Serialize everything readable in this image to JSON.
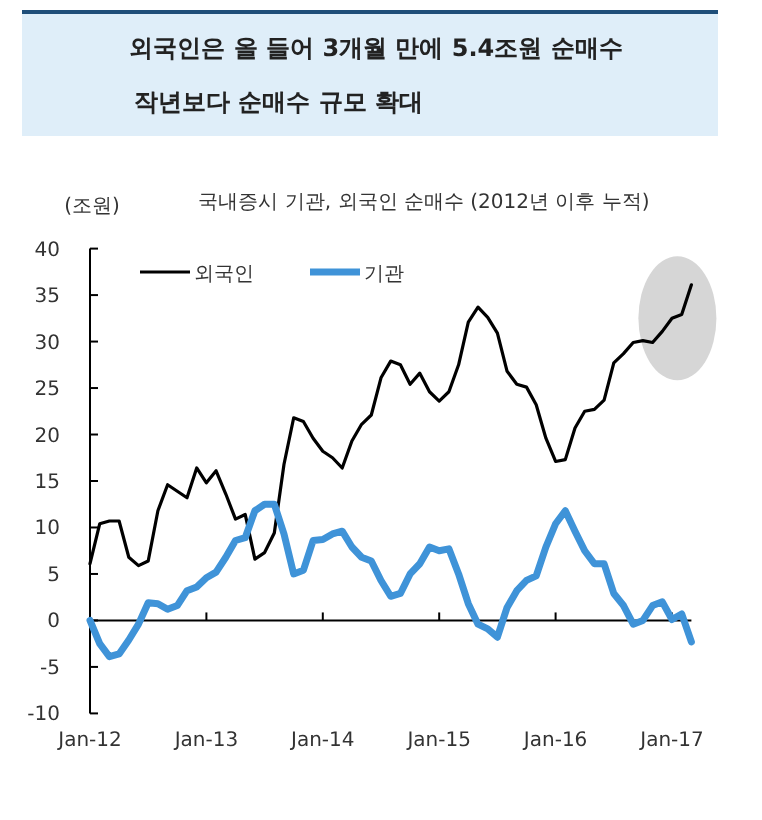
{
  "chart_data": {
    "type": "line",
    "title": "외국인은 올 들어 3개월 만에 5.4조원 순매수",
    "subtitle": "작년보다 순매수 규모 확대",
    "annotations": [
      "국내증시 기관, 외국인 순매수 (2012년 이후 누적)"
    ],
    "ylabel": "(조원)",
    "x": [
      "2012-01",
      "2012-02",
      "2012-03",
      "2012-04",
      "2012-05",
      "2012-06",
      "2012-07",
      "2012-08",
      "2012-09",
      "2012-10",
      "2012-11",
      "2012-12",
      "2013-01",
      "2013-02",
      "2013-03",
      "2013-04",
      "2013-05",
      "2013-06",
      "2013-07",
      "2013-08",
      "2013-09",
      "2013-10",
      "2013-11",
      "2013-12",
      "2014-01",
      "2014-02",
      "2014-03",
      "2014-04",
      "2014-05",
      "2014-06",
      "2014-07",
      "2014-08",
      "2014-09",
      "2014-10",
      "2014-11",
      "2014-12",
      "2015-01",
      "2015-02",
      "2015-03",
      "2015-04",
      "2015-05",
      "2015-06",
      "2015-07",
      "2015-08",
      "2015-09",
      "2015-10",
      "2015-11",
      "2015-12",
      "2016-01",
      "2016-02",
      "2016-03",
      "2016-04",
      "2016-05",
      "2016-06",
      "2016-07",
      "2016-08",
      "2016-09",
      "2016-10",
      "2016-11",
      "2016-12",
      "2017-01",
      "2017-02",
      "2017-03"
    ],
    "series": [
      {
        "name": "외국인",
        "color": "#000000",
        "values": [
          6.1,
          10.4,
          10.7,
          10.7,
          6.8,
          5.9,
          6.4,
          11.8,
          14.6,
          13.9,
          13.2,
          16.4,
          14.8,
          16.1,
          13.6,
          10.9,
          11.4,
          6.6,
          7.3,
          9.4,
          16.8,
          21.8,
          21.4,
          19.6,
          18.2,
          17.5,
          16.4,
          19.3,
          21.1,
          22.1,
          26.1,
          27.9,
          27.5,
          25.4,
          26.6,
          24.6,
          23.6,
          24.6,
          27.5,
          32.1,
          33.7,
          32.6,
          30.9,
          26.8,
          25.4,
          25.1,
          23.2,
          19.6,
          17.1,
          17.3,
          20.7,
          22.5,
          22.7,
          23.7,
          27.7,
          28.7,
          29.9,
          30.1,
          29.9,
          31.1,
          32.5,
          32.9,
          36.1
        ]
      },
      {
        "name": "기관",
        "color": "#3f93d8",
        "values": [
          0,
          -2.5,
          -3.9,
          -3.6,
          -2.1,
          -0.4,
          1.9,
          1.8,
          1.2,
          1.6,
          3.2,
          3.6,
          4.6,
          5.2,
          6.8,
          8.6,
          8.9,
          11.8,
          12.5,
          12.5,
          9.3,
          5.0,
          5.4,
          8.6,
          8.7,
          9.3,
          9.6,
          7.9,
          6.8,
          6.4,
          4.3,
          2.6,
          2.9,
          5.0,
          6.1,
          7.9,
          7.5,
          7.7,
          5.0,
          1.8,
          -0.4,
          -0.9,
          -1.8,
          1.4,
          3.2,
          4.3,
          4.8,
          7.9,
          10.4,
          11.8,
          9.6,
          7.5,
          6.1,
          6.1,
          2.9,
          1.6,
          -0.4,
          0,
          1.6,
          2.0,
          0.1,
          0.7,
          -2.3
        ]
      }
    ],
    "xlim": [
      "2012-01",
      "2017-03"
    ],
    "xticks": [
      {
        "value": "2012-01",
        "label": "Jan-12"
      },
      {
        "value": "2013-01",
        "label": "Jan-13"
      },
      {
        "value": "2014-01",
        "label": "Jan-14"
      },
      {
        "value": "2015-01",
        "label": "Jan-15"
      },
      {
        "value": "2016-01",
        "label": "Jan-16"
      },
      {
        "value": "2017-01",
        "label": "Jan-17"
      }
    ],
    "ylim": [
      -10,
      40
    ],
    "yticks": [
      -10,
      -5,
      0,
      5,
      10,
      15,
      20,
      25,
      30,
      35,
      40
    ],
    "legend": "top"
  }
}
